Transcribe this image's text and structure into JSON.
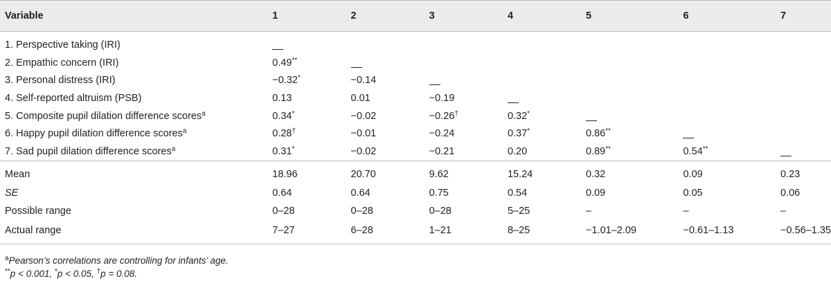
{
  "header": {
    "variable": "Variable",
    "cols": [
      "1",
      "2",
      "3",
      "4",
      "5",
      "6",
      "7"
    ]
  },
  "rows": [
    {
      "label": "1. Perspective taking (IRI)",
      "sup": "",
      "cells": [
        {
          "v": "",
          "s": "",
          "dash": true
        },
        {
          "v": "",
          "s": ""
        },
        {
          "v": "",
          "s": ""
        },
        {
          "v": "",
          "s": ""
        },
        {
          "v": "",
          "s": ""
        },
        {
          "v": "",
          "s": ""
        },
        {
          "v": "",
          "s": ""
        }
      ]
    },
    {
      "label": "2. Empathic concern (IRI)",
      "sup": "",
      "cells": [
        {
          "v": "0.49",
          "s": "**"
        },
        {
          "v": "",
          "s": "",
          "dash": true
        },
        {
          "v": "",
          "s": ""
        },
        {
          "v": "",
          "s": ""
        },
        {
          "v": "",
          "s": ""
        },
        {
          "v": "",
          "s": ""
        },
        {
          "v": "",
          "s": ""
        }
      ]
    },
    {
      "label": "3. Personal distress (IRI)",
      "sup": "",
      "cells": [
        {
          "v": "−0.32",
          "s": "*"
        },
        {
          "v": "−0.14",
          "s": ""
        },
        {
          "v": "",
          "s": "",
          "dash": true
        },
        {
          "v": "",
          "s": ""
        },
        {
          "v": "",
          "s": ""
        },
        {
          "v": "",
          "s": ""
        },
        {
          "v": "",
          "s": ""
        }
      ]
    },
    {
      "label": "4. Self-reported altruism (PSB)",
      "sup": "",
      "cells": [
        {
          "v": "0.13",
          "s": ""
        },
        {
          "v": "0.01",
          "s": ""
        },
        {
          "v": "−0.19",
          "s": ""
        },
        {
          "v": "",
          "s": "",
          "dash": true
        },
        {
          "v": "",
          "s": ""
        },
        {
          "v": "",
          "s": ""
        },
        {
          "v": "",
          "s": ""
        }
      ]
    },
    {
      "label": "5. Composite pupil dilation difference scores",
      "sup": "a",
      "cells": [
        {
          "v": "0.34",
          "s": "*"
        },
        {
          "v": "−0.02",
          "s": ""
        },
        {
          "v": "−0.26",
          "s": "†"
        },
        {
          "v": "0.32",
          "s": "*"
        },
        {
          "v": "",
          "s": "",
          "dash": true
        },
        {
          "v": "",
          "s": ""
        },
        {
          "v": "",
          "s": ""
        }
      ]
    },
    {
      "label": "6. Happy pupil dilation difference scores",
      "sup": "a",
      "cells": [
        {
          "v": "0.28",
          "s": "†"
        },
        {
          "v": "−0.01",
          "s": ""
        },
        {
          "v": "−0.24",
          "s": ""
        },
        {
          "v": "0.37",
          "s": "*"
        },
        {
          "v": "0.86",
          "s": "**"
        },
        {
          "v": "",
          "s": "",
          "dash": true
        },
        {
          "v": "",
          "s": ""
        }
      ]
    },
    {
      "label": "7. Sad pupil dilation difference scores",
      "sup": "a",
      "cells": [
        {
          "v": "0.31",
          "s": "*"
        },
        {
          "v": "−0.02",
          "s": ""
        },
        {
          "v": "−0.21",
          "s": ""
        },
        {
          "v": "0.20",
          "s": ""
        },
        {
          "v": "0.89",
          "s": "**"
        },
        {
          "v": "0.54",
          "s": "**"
        },
        {
          "v": "",
          "s": "",
          "dash": true
        }
      ]
    }
  ],
  "stats": [
    {
      "label": "Mean",
      "italic": false,
      "cells": [
        "18.96",
        "20.70",
        "9.62",
        "15.24",
        "0.32",
        "0.09",
        "0.23"
      ]
    },
    {
      "label": "SE",
      "italic": true,
      "cells": [
        "0.64",
        "0.64",
        "0.75",
        "0.54",
        "0.09",
        "0.05",
        "0.06"
      ]
    },
    {
      "label": "Possible range",
      "italic": false,
      "cells": [
        "0–28",
        "0–28",
        "0–28",
        "5–25",
        "–",
        "–",
        "–"
      ]
    },
    {
      "label": "Actual range",
      "italic": false,
      "cells": [
        "7–27",
        "6–28",
        "1–21",
        "8–25",
        "−1.01–2.09",
        "−0.61–1.13",
        "−0.56–1.35"
      ]
    }
  ],
  "notes": {
    "a_sup": "a",
    "a_text": "Pearson’s correlations are controlling for infants’ age.",
    "sig_1_sup": "**",
    "sig_1": "p < 0.001, ",
    "sig_2_sup": "*",
    "sig_2": "p < 0.05, ",
    "sig_3_sup": "†",
    "sig_3": "p = 0.08."
  }
}
